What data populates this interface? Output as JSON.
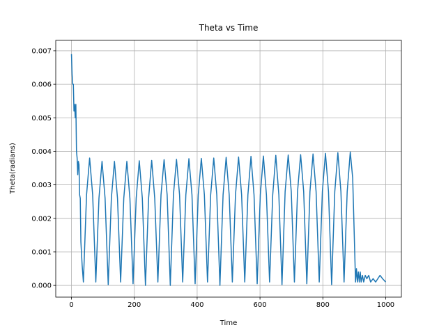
{
  "chart_data": {
    "type": "line",
    "title": "Theta vs Time",
    "x_label": "Time",
    "y_label": "Theta(radians)",
    "color": "#1f77b4",
    "grid": true,
    "xlim": [
      -50,
      1050
    ],
    "ylim": [
      -0.00035,
      0.00731
    ],
    "xticks": [
      0,
      200,
      400,
      600,
      800,
      1000
    ],
    "yticks": [
      {
        "value": 0,
        "label": "0.000"
      },
      0.001,
      0.002,
      0.003,
      0.004,
      0.005,
      0.006,
      0.007
    ],
    "x": [
      0,
      2,
      4,
      6,
      8,
      10,
      12,
      14,
      16,
      18,
      20,
      22,
      24,
      26,
      28,
      30,
      34,
      38,
      48,
      57.8,
      67.5,
      77.5,
      87.5,
      97.3,
      107,
      117,
      127,
      136.8,
      146.5,
      156.5,
      166.5,
      176.3,
      186,
      196,
      206,
      215.8,
      225.5,
      235.5,
      245.5,
      255.3,
      265,
      275,
      285,
      294.8,
      304.5,
      314.5,
      324.5,
      334.3,
      344,
      354,
      364,
      373.8,
      383.5,
      393.5,
      403.5,
      413.3,
      423,
      433,
      443,
      452.8,
      462.5,
      472.5,
      482.5,
      492.3,
      502,
      512,
      522,
      531.8,
      541.5,
      551.5,
      561.5,
      571.3,
      581,
      591,
      601,
      610.8,
      620.5,
      630.5,
      640.5,
      650.3,
      660,
      670,
      680,
      689.8,
      699.5,
      709.5,
      719.5,
      729.3,
      739,
      749,
      759,
      768.8,
      778.5,
      788.5,
      798.5,
      808.3,
      818,
      828,
      838,
      847.8,
      857.5,
      867.5,
      877.5,
      887.3,
      895,
      900,
      904,
      907,
      910,
      913,
      916,
      919,
      922,
      926,
      930,
      935,
      940,
      946,
      952,
      960,
      968,
      975,
      982,
      990,
      1000
    ],
    "values": [
      0.0069,
      0.0063,
      0.006,
      0.006,
      0.0052,
      0.0054,
      0.005,
      0.0054,
      0.004,
      0.0038,
      0.0033,
      0.0037,
      0.0036,
      0.0027,
      0.0026,
      0.0013,
      0.0006,
      0.0001,
      0.0027,
      0.0038,
      0.0027,
      0.0001,
      0.0026,
      0.0037,
      0.0026,
      2e-05,
      0.0026,
      0.0037,
      0.0026,
      0.0001,
      0.0026,
      0.0037,
      0.0026,
      5e-05,
      0.0026,
      0.00372,
      0.0026,
      0.0,
      0.0026,
      0.00373,
      0.0026,
      0.0001,
      0.0027,
      0.00375,
      0.0027,
      0.0,
      0.0027,
      0.00376,
      0.0027,
      0.0001,
      0.0027,
      0.00378,
      0.0027,
      5e-05,
      0.0027,
      0.00379,
      0.0027,
      0.0001,
      0.0027,
      0.0038,
      0.0027,
      0.0,
      0.0027,
      0.00382,
      0.0027,
      0.0001,
      0.0027,
      0.00383,
      0.0027,
      0.0001,
      0.0027,
      0.00385,
      0.0027,
      5e-05,
      0.0027,
      0.00386,
      0.0027,
      0.0001,
      0.0027,
      0.00388,
      0.0027,
      2e-05,
      0.0028,
      0.00389,
      0.0028,
      0.0001,
      0.0028,
      0.0039,
      0.0028,
      5e-05,
      0.0028,
      0.00392,
      0.0028,
      0.0001,
      0.0028,
      0.00394,
      0.0028,
      2e-05,
      0.0028,
      0.00396,
      0.0028,
      0.0001,
      0.0028,
      0.00398,
      0.0032,
      0.0015,
      0.0001,
      0.0005,
      0.0001,
      0.0004,
      0.0001,
      0.0004,
      0.0001,
      0.0003,
      0.0001,
      0.0003,
      0.0002,
      0.0003,
      0.0001,
      0.0002,
      0.0001,
      0.0002,
      0.0003,
      0.0002,
      0.0001
    ]
  }
}
